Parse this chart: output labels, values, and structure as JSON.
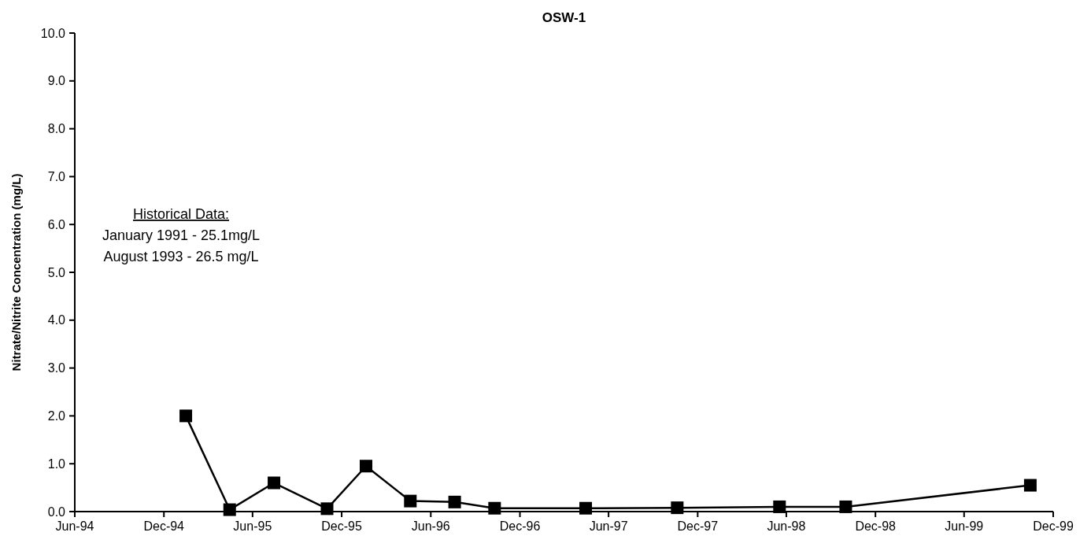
{
  "chart_data": {
    "type": "line",
    "title": "OSW-1",
    "ylabel": "Nitrate/Nitrite Concentration (mg/L)",
    "annotations": [
      "Historical Data:",
      "January 1991 - 25.1mg/L",
      "August 1993 - 26.5 mg/L"
    ],
    "x": [
      "1995-01-15",
      "1995-04-15",
      "1995-07-15",
      "1995-11-01",
      "1996-01-20",
      "1996-04-20",
      "1996-07-20",
      "1996-10-10",
      "1997-04-15",
      "1997-10-20",
      "1998-05-18",
      "1998-10-01",
      "1999-10-15"
    ],
    "series": [
      {
        "color": "#000000",
        "values": [
          2.0,
          0.04,
          0.6,
          0.06,
          0.95,
          0.22,
          0.2,
          0.07,
          0.07,
          0.08,
          0.1,
          0.1,
          0.55
        ]
      }
    ],
    "xlim": [
      "1994-06-01",
      "1999-12-01"
    ],
    "xticks": [
      {
        "value": "1994-06-01",
        "label": "Jun-94"
      },
      {
        "value": "1994-12-01",
        "label": "Dec-94"
      },
      {
        "value": "1995-06-01",
        "label": "Jun-95"
      },
      {
        "value": "1995-12-01",
        "label": "Dec-95"
      },
      {
        "value": "1996-06-01",
        "label": "Jun-96"
      },
      {
        "value": "1996-12-01",
        "label": "Dec-96"
      },
      {
        "value": "1997-06-01",
        "label": "Jun-97"
      },
      {
        "value": "1997-12-01",
        "label": "Dec-97"
      },
      {
        "value": "1998-06-01",
        "label": "Jun-98"
      },
      {
        "value": "1998-12-01",
        "label": "Dec-98"
      },
      {
        "value": "1999-06-01",
        "label": "Jun-99"
      },
      {
        "value": "1999-12-01",
        "label": "Dec-99"
      }
    ],
    "ylim": [
      0,
      10
    ],
    "yticks": [
      {
        "value": 0,
        "label": "0.0"
      },
      {
        "value": 1,
        "label": "1.0"
      },
      {
        "value": 2,
        "label": "2.0"
      },
      {
        "value": 3,
        "label": "3.0"
      },
      {
        "value": 4,
        "label": "4.0"
      },
      {
        "value": 5,
        "label": "5.0"
      },
      {
        "value": 6,
        "label": "6.0"
      },
      {
        "value": 7,
        "label": "7.0"
      },
      {
        "value": 8,
        "label": "8.0"
      },
      {
        "value": 9,
        "label": "9.0"
      },
      {
        "value": 10,
        "label": "10.0"
      }
    ],
    "grid": false,
    "marker": "square",
    "line_style": "solid"
  }
}
